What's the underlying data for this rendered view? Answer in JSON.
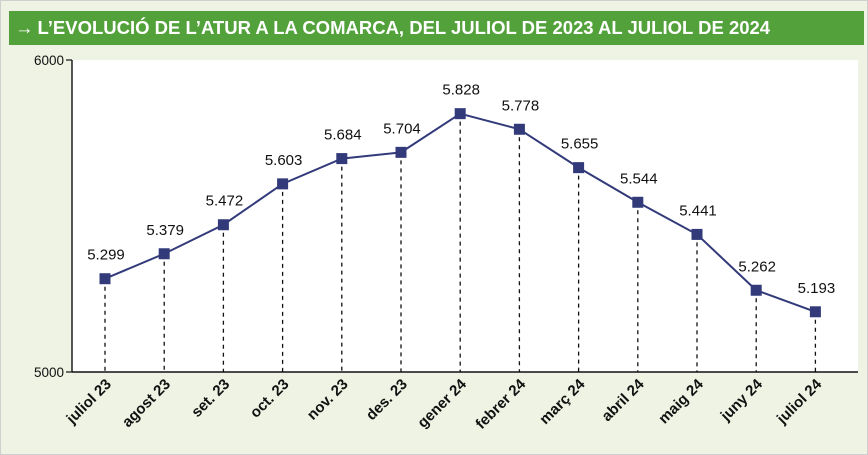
{
  "header": {
    "arrow": "→",
    "title": "L’EVOLUCIÓ DE L’ATUR A LA COMARCA, DEL JULIOL DE 2023 AL JULIOL DE 2024"
  },
  "colors": {
    "header_bg": "#52a13b",
    "panel_bg": "#eef3e3",
    "plot_bg": "#ffffff",
    "line": "#323a7a",
    "marker": "#323a7a"
  },
  "chart_data": {
    "type": "line",
    "title": "L’EVOLUCIÓ DE L’ATUR A LA COMARCA, DEL JULIOL DE 2023 AL JULIOL DE 2024",
    "xlabel": "",
    "ylabel": "",
    "categories": [
      "juliol 23",
      "agost 23",
      "set. 23",
      "oct. 23",
      "nov. 23",
      "des. 23",
      "gener 24",
      "febrer 24",
      "març 24",
      "abril 24",
      "maig 24",
      "juny 24",
      "juliol 24"
    ],
    "values": [
      5299,
      5379,
      5472,
      5603,
      5684,
      5704,
      5828,
      5778,
      5655,
      5544,
      5441,
      5262,
      5193
    ],
    "data_labels": [
      "5.299",
      "5.379",
      "5.472",
      "5.603",
      "5.684",
      "5.704",
      "5.828",
      "5.778",
      "5.655",
      "5.544",
      "5.441",
      "5.262",
      "5.193"
    ],
    "ylim": [
      5000,
      6000
    ],
    "yticks": [
      5000,
      6000
    ],
    "ytick_labels": [
      "5000",
      "6000"
    ],
    "marker": "square",
    "drop_lines": "dashed",
    "grid": false,
    "legend": "none"
  }
}
